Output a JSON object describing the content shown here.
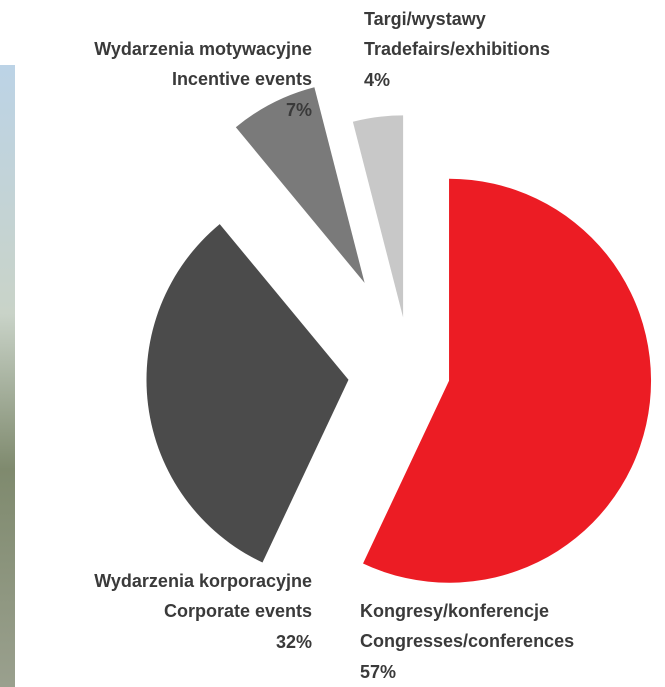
{
  "chart_data": {
    "type": "pie",
    "categories": [
      "Kongresy/konferencje",
      "Wydarzenia korporacyjne",
      "Wydarzenia motywacyjne",
      "Targi/wystawy"
    ],
    "categories_en": [
      "Congresses/conferences",
      "Corporate events",
      "Incentive events",
      "Tradefairs/exhibitions"
    ],
    "values": [
      57,
      32,
      7,
      4
    ],
    "value_labels": [
      "57%",
      "32%",
      "7%",
      "4%"
    ],
    "colors": [
      "#ec1c24",
      "#4b4b4b",
      "#7a7a7a",
      "#c8c8c8"
    ]
  }
}
